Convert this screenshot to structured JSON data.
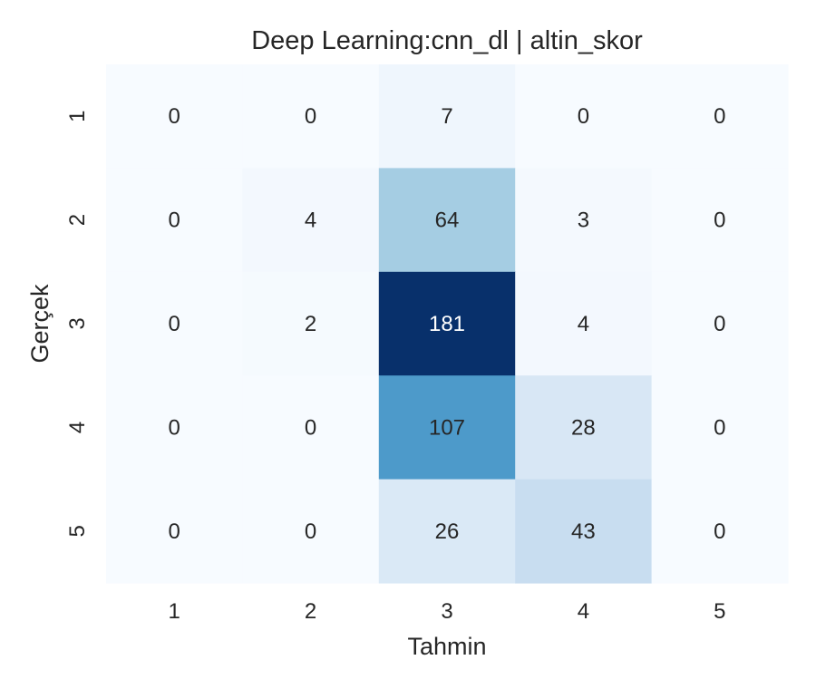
{
  "chart_data": {
    "type": "heatmap",
    "title": "Deep Learning:cnn_dl | altin_skor",
    "xlabel": "Tahmin",
    "ylabel": "Gerçek",
    "x_categories": [
      "1",
      "2",
      "3",
      "4",
      "5"
    ],
    "y_categories": [
      "1",
      "2",
      "3",
      "4",
      "5"
    ],
    "values": [
      [
        0,
        0,
        7,
        0,
        0
      ],
      [
        0,
        4,
        64,
        3,
        0
      ],
      [
        0,
        2,
        181,
        4,
        0
      ],
      [
        0,
        0,
        107,
        28,
        0
      ],
      [
        0,
        0,
        26,
        43,
        0
      ]
    ],
    "colormap": "Blues",
    "color_low": "#f7fbff",
    "color_high": "#08306b",
    "vmin": 0,
    "vmax": 181,
    "colorbar": false,
    "grid": false
  }
}
